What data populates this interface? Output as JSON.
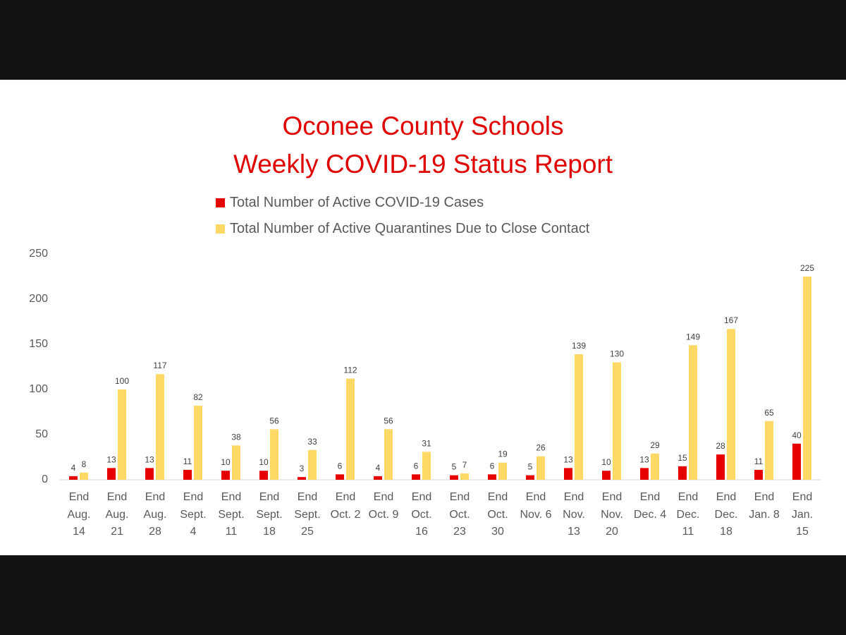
{
  "chart_data": {
    "type": "bar",
    "title": "Oconee County Schools\nWeekly COVID-19 Status Report",
    "categories": [
      "End\nAug.\n14",
      "End\nAug.\n21",
      "End\nAug.\n28",
      "End\nSept.\n4",
      "End\nSept.\n11",
      "End\nSept.\n18",
      "End\nSept.\n25",
      "End\nOct. 2",
      "End\nOct. 9",
      "End\nOct.\n16",
      "End\nOct.\n23",
      "End\nOct.\n30",
      "End\nNov. 6",
      "End\nNov.\n13",
      "End\nNov.\n20",
      "End\nDec. 4",
      "End\nDec.\n11",
      "End\nDec.\n18",
      "End\nJan. 8",
      "End\nJan.\n15"
    ],
    "series": [
      {
        "name": "Total Number of Active COVID-19 Cases",
        "color": "#e60000",
        "values": [
          4,
          13,
          13,
          11,
          10,
          10,
          3,
          6,
          4,
          6,
          5,
          6,
          5,
          13,
          10,
          13,
          15,
          28,
          11,
          40
        ]
      },
      {
        "name": "Total Number of Active Quarantines Due to Close Contact",
        "color": "#ffd966",
        "values": [
          8,
          100,
          117,
          82,
          38,
          56,
          33,
          112,
          56,
          31,
          7,
          19,
          26,
          139,
          130,
          29,
          149,
          167,
          65,
          225
        ]
      }
    ],
    "ylim": [
      0,
      250
    ],
    "yticks": [
      0,
      50,
      100,
      150,
      200,
      250
    ],
    "grid": false,
    "legend": "top"
  }
}
